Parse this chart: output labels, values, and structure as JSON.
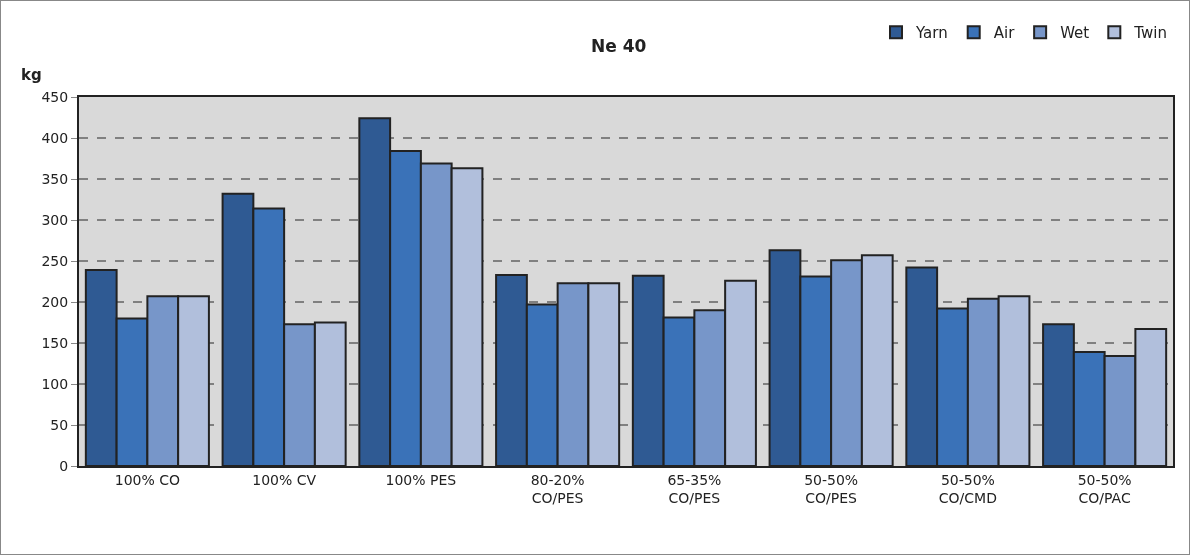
{
  "chart_data": {
    "type": "bar",
    "title": "Ne 40",
    "ylabel": "kg",
    "categories": [
      "100% CO",
      "100% CV",
      "100% PES",
      "80-20%\nCO/PES",
      "65-35%\nCO/PES",
      "50-50%\nCO/PES",
      "50-50%\nCO/CMD",
      "50-50%\nCO/PAC"
    ],
    "series": [
      {
        "name": "Yarn",
        "color": "#2f5a93",
        "values": [
          239,
          332,
          424,
          233,
          232,
          263,
          242,
          173
        ]
      },
      {
        "name": "Air",
        "color": "#3a72b8",
        "values": [
          180,
          314,
          384,
          197,
          181,
          231,
          192,
          139
        ]
      },
      {
        "name": "Wet",
        "color": "#7796c9",
        "values": [
          207,
          173,
          369,
          223,
          190,
          251,
          204,
          134
        ]
      },
      {
        "name": "Twin",
        "color": "#b1bfdc",
        "values": [
          207,
          175,
          363,
          223,
          226,
          257,
          207,
          167
        ]
      }
    ],
    "ylim": [
      0,
      450
    ],
    "yticks": [
      0,
      50,
      100,
      150,
      200,
      250,
      300,
      350,
      400,
      450
    ],
    "grid": "y",
    "legend": "top right"
  }
}
